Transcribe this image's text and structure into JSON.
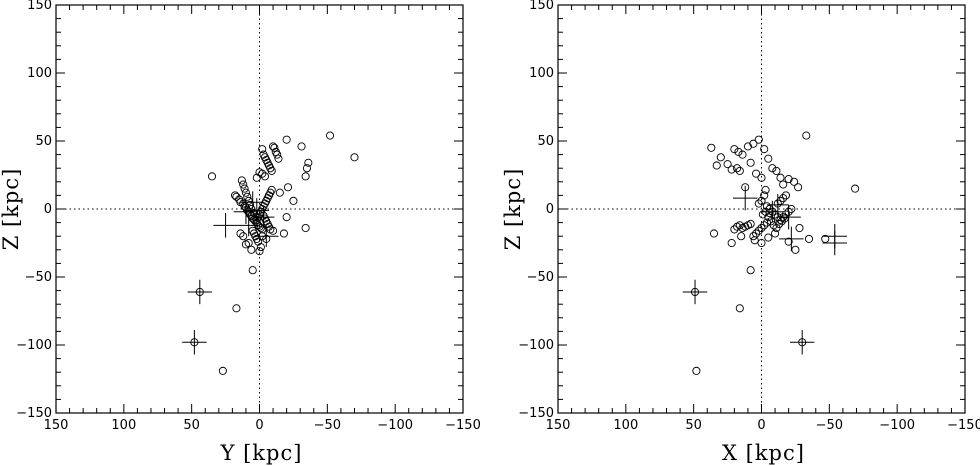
{
  "chart_data": [
    {
      "type": "scatter",
      "title": "",
      "xlabel": "Y [kpc]",
      "ylabel": "Z [kpc]",
      "xlim": [
        150,
        -150
      ],
      "ylim": [
        -150,
        150
      ],
      "x_reversed": true,
      "xticks": [
        150,
        100,
        50,
        0,
        -50,
        -100,
        -150
      ],
      "yticks": [
        -150,
        -100,
        -50,
        0,
        50,
        100,
        150
      ],
      "xtick_labels": [
        "150",
        "100",
        "50",
        "0",
        "−50",
        "−100",
        "−150"
      ],
      "ytick_labels": [
        "−150",
        "−100",
        "−50",
        "0",
        "50",
        "100",
        "150"
      ],
      "reference_lines": {
        "x": 0,
        "y": 0,
        "style": "dotted"
      },
      "grid": false,
      "marker": "open-circle",
      "points": [
        [
          35,
          24
        ],
        [
          18,
          10
        ],
        [
          17,
          9
        ],
        [
          15,
          7
        ],
        [
          14,
          5
        ],
        [
          12,
          4
        ],
        [
          11,
          2
        ],
        [
          10,
          1
        ],
        [
          9,
          -1
        ],
        [
          8,
          -2
        ],
        [
          7,
          -4
        ],
        [
          6,
          -5
        ],
        [
          5,
          -7
        ],
        [
          4,
          -8
        ],
        [
          3,
          -9
        ],
        [
          2,
          -10
        ],
        [
          1,
          -12
        ],
        [
          0,
          -13
        ],
        [
          -1,
          -14
        ],
        [
          -2,
          -15
        ],
        [
          6,
          0
        ],
        [
          7,
          3
        ],
        [
          8,
          6
        ],
        [
          9,
          9
        ],
        [
          10,
          12
        ],
        [
          11,
          15
        ],
        [
          12,
          18
        ],
        [
          13,
          21
        ],
        [
          4,
          -3
        ],
        [
          3,
          -6
        ],
        [
          2,
          -8
        ],
        [
          1,
          -6
        ],
        [
          0,
          -4
        ],
        [
          -1,
          -2
        ],
        [
          -2,
          0
        ],
        [
          -3,
          2
        ],
        [
          -4,
          4
        ],
        [
          -5,
          6
        ],
        [
          -6,
          8
        ],
        [
          -7,
          10
        ],
        [
          -8,
          12
        ],
        [
          -9,
          14
        ],
        [
          -3,
          -5
        ],
        [
          -4,
          -7
        ],
        [
          -5,
          -9
        ],
        [
          -6,
          -11
        ],
        [
          -7,
          -13
        ],
        [
          -8,
          -15
        ],
        [
          5,
          -16
        ],
        [
          4,
          -18
        ],
        [
          3,
          -20
        ],
        [
          2,
          -22
        ],
        [
          1,
          -24
        ],
        [
          8,
          -25
        ],
        [
          10,
          -26
        ],
        [
          12,
          -20
        ],
        [
          14,
          -18
        ],
        [
          6,
          -30
        ],
        [
          -2,
          44
        ],
        [
          -3,
          40
        ],
        [
          -4,
          38
        ],
        [
          -5,
          36
        ],
        [
          -6,
          34
        ],
        [
          -7,
          32
        ],
        [
          -8,
          30
        ],
        [
          -9,
          28
        ],
        [
          -10,
          46
        ],
        [
          -11,
          45
        ],
        [
          -12,
          42
        ],
        [
          -13,
          40
        ],
        [
          -14,
          37
        ],
        [
          -20,
          51
        ],
        [
          -31,
          46
        ],
        [
          -36,
          34
        ],
        [
          -35,
          30
        ],
        [
          -34,
          24
        ],
        [
          -52,
          54
        ],
        [
          -70,
          38
        ],
        [
          -21,
          16
        ],
        [
          -18,
          -18
        ],
        [
          -34,
          -14
        ],
        [
          -25,
          6
        ],
        [
          -15,
          12
        ],
        [
          -20,
          -6
        ],
        [
          -10,
          -16
        ],
        [
          -5,
          -22
        ],
        [
          -1,
          -28
        ],
        [
          0,
          -31
        ],
        [
          -2,
          -20
        ],
        [
          -4,
          24
        ],
        [
          -2,
          26
        ],
        [
          0,
          27
        ],
        [
          2,
          23
        ],
        [
          5,
          -45
        ],
        [
          17,
          -73
        ],
        [
          27,
          -119
        ],
        [
          44,
          -61
        ],
        [
          48,
          -98
        ]
      ],
      "error_bars": [
        {
          "x": 44,
          "y": -61,
          "dx": 9,
          "dy": 9
        },
        {
          "x": 48,
          "y": -98,
          "dx": 9,
          "dy": 9
        },
        {
          "x": 25,
          "y": -12,
          "dx": 9,
          "dy": 9
        },
        {
          "x": 10,
          "y": -2,
          "dx": 9,
          "dy": 9
        },
        {
          "x": 5,
          "y": 5,
          "dx": 8,
          "dy": 8
        },
        {
          "x": 2,
          "y": -1,
          "dx": 9,
          "dy": 9
        },
        {
          "x": -5,
          "y": -20,
          "dx": 9,
          "dy": 8
        },
        {
          "x": -3,
          "y": -6,
          "dx": 8,
          "dy": 8
        },
        {
          "x": 8,
          "y": -12,
          "dx": 8,
          "dy": 8
        }
      ]
    },
    {
      "type": "scatter",
      "title": "",
      "xlabel": "X [kpc]",
      "ylabel": "Z [kpc]",
      "xlim": [
        150,
        -150
      ],
      "ylim": [
        -150,
        150
      ],
      "x_reversed": true,
      "xticks": [
        150,
        100,
        50,
        0,
        -50,
        -100,
        -150
      ],
      "yticks": [
        -150,
        -100,
        -50,
        0,
        50,
        100,
        150
      ],
      "xtick_labels": [
        "150",
        "100",
        "50",
        "0",
        "−50",
        "−100",
        "−150"
      ],
      "ytick_labels": [
        "−150",
        "−100",
        "−50",
        "0",
        "50",
        "100",
        "150"
      ],
      "reference_lines": {
        "x": 0,
        "y": 0,
        "style": "dotted"
      },
      "grid": false,
      "marker": "open-circle",
      "points": [
        [
          37,
          45
        ],
        [
          33,
          32
        ],
        [
          30,
          38
        ],
        [
          25,
          33
        ],
        [
          22,
          29
        ],
        [
          20,
          44
        ],
        [
          17,
          42
        ],
        [
          14,
          40
        ],
        [
          10,
          46
        ],
        [
          6,
          48
        ],
        [
          2,
          51
        ],
        [
          -2,
          44
        ],
        [
          -5,
          37
        ],
        [
          -8,
          30
        ],
        [
          -11,
          28
        ],
        [
          -14,
          23
        ],
        [
          -16,
          18
        ],
        [
          -20,
          22
        ],
        [
          -24,
          20
        ],
        [
          -27,
          16
        ],
        [
          -33,
          54
        ],
        [
          -69,
          15
        ],
        [
          12,
          16
        ],
        [
          16,
          28
        ],
        [
          18,
          30
        ],
        [
          8,
          34
        ],
        [
          4,
          26
        ],
        [
          0,
          23
        ],
        [
          -3,
          14
        ],
        [
          -2,
          10
        ],
        [
          0,
          6
        ],
        [
          2,
          4
        ],
        [
          -4,
          2
        ],
        [
          -6,
          0
        ],
        [
          -8,
          -2
        ],
        [
          -10,
          -4
        ],
        [
          -12,
          -6
        ],
        [
          -14,
          -8
        ],
        [
          -16,
          -6
        ],
        [
          -18,
          -4
        ],
        [
          -20,
          -2
        ],
        [
          -22,
          0
        ],
        [
          -12,
          4
        ],
        [
          -14,
          6
        ],
        [
          -16,
          8
        ],
        [
          -18,
          10
        ],
        [
          -6,
          -3
        ],
        [
          -5,
          -6
        ],
        [
          -7,
          -9
        ],
        [
          -9,
          -12
        ],
        [
          -11,
          -14
        ],
        [
          -13,
          -11
        ],
        [
          -15,
          -9
        ],
        [
          -17,
          -7
        ],
        [
          -4,
          -10
        ],
        [
          -2,
          -12
        ],
        [
          0,
          -14
        ],
        [
          2,
          -16
        ],
        [
          4,
          -18
        ],
        [
          6,
          -20
        ],
        [
          8,
          -11
        ],
        [
          10,
          -12
        ],
        [
          12,
          -13
        ],
        [
          14,
          -14
        ],
        [
          16,
          -12
        ],
        [
          18,
          -13
        ],
        [
          20,
          -15
        ],
        [
          -1,
          -4
        ],
        [
          -3,
          -2
        ],
        [
          35,
          -18
        ],
        [
          22,
          -25
        ],
        [
          15,
          -20
        ],
        [
          5,
          -23
        ],
        [
          0,
          -25
        ],
        [
          -5,
          -21
        ],
        [
          -10,
          -18
        ],
        [
          -20,
          -24
        ],
        [
          -25,
          -30
        ],
        [
          -28,
          -14
        ],
        [
          -35,
          -22
        ],
        [
          -47,
          -22
        ],
        [
          8,
          -45
        ],
        [
          16,
          -73
        ],
        [
          48,
          -119
        ],
        [
          49,
          -61
        ],
        [
          -30,
          -98
        ]
      ],
      "error_bars": [
        {
          "x": 49,
          "y": -61,
          "dx": 9,
          "dy": 9
        },
        {
          "x": -30,
          "y": -98,
          "dx": 9,
          "dy": 9
        },
        {
          "x": -54,
          "y": -20,
          "dx": 9,
          "dy": 9
        },
        {
          "x": -54,
          "y": -25,
          "dx": 9,
          "dy": 9
        },
        {
          "x": -22,
          "y": -22,
          "dx": 9,
          "dy": 9
        },
        {
          "x": -20,
          "y": -6,
          "dx": 9,
          "dy": 9
        },
        {
          "x": -12,
          "y": 3,
          "dx": 8,
          "dy": 8
        },
        {
          "x": 12,
          "y": 8,
          "dx": 9,
          "dy": 9
        },
        {
          "x": -8,
          "y": -2,
          "dx": 8,
          "dy": 8
        }
      ]
    }
  ]
}
